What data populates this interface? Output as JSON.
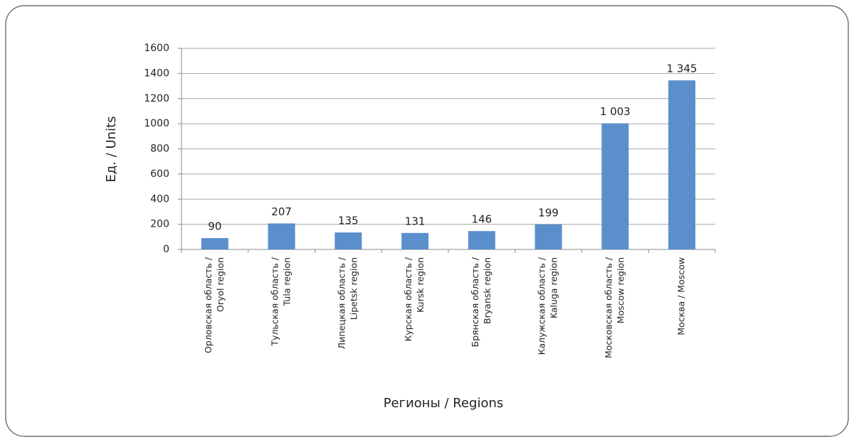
{
  "chart_data": {
    "type": "bar",
    "xlabel": "Регионы / Regions",
    "ylabel": "Ед. / Units",
    "categories": [
      [
        "Орловская область /",
        "Oryol region"
      ],
      [
        "Тульская область /",
        "Tula region"
      ],
      [
        "Липецкая область /",
        "Lipetsk region"
      ],
      [
        "Курская область /",
        "Kursk region"
      ],
      [
        "Брянская область /",
        "Bryansk region"
      ],
      [
        "Калужская область /",
        "Kaluga region"
      ],
      [
        "Московская область /",
        "Moscow region"
      ],
      [
        "Москва / Moscow"
      ]
    ],
    "values": [
      90,
      207,
      135,
      131,
      146,
      199,
      1003,
      1345
    ],
    "value_labels": [
      "90",
      "207",
      "135",
      "131",
      "146",
      "199",
      "1 003",
      "1 345"
    ],
    "color": "#5b8fcc",
    "ylim": [
      0,
      1600
    ],
    "yticks": [
      0,
      200,
      400,
      600,
      800,
      1000,
      1200,
      1400,
      1600
    ],
    "grid": true
  }
}
